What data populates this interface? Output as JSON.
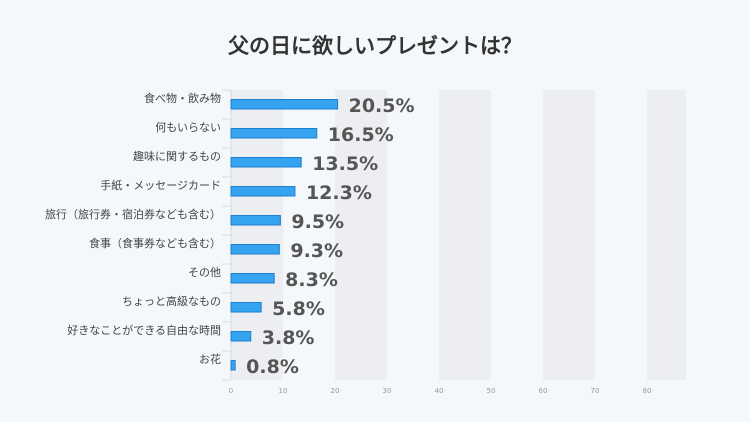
{
  "chart_data": {
    "type": "bar",
    "orientation": "horizontal",
    "title": "父の日に欲しいプレゼントは？",
    "categories": [
      "食べ物・飲み物",
      "何もいらない",
      "趣味に関するもの",
      "手紙・メッセージカード",
      "旅行（旅行券・宿泊券なども含む）",
      "食事（食事券なども含む）",
      "その他",
      "ちょっと高級なもの",
      "好きなことができる自由な時間",
      "お花"
    ],
    "values": [
      20.5,
      16.5,
      13.5,
      12.3,
      9.5,
      9.3,
      8.3,
      5.8,
      3.8,
      0.8
    ],
    "data_labels": [
      "20.5%",
      "16.5%",
      "13.5%",
      "12.3%",
      "9.5%",
      "9.3%",
      "8.3%",
      "5.8%",
      "3.8%",
      "0.8%"
    ],
    "xticks": [
      "0",
      "10",
      "20",
      "30",
      "40",
      "50",
      "60",
      "70",
      "80"
    ],
    "xlim": [
      0,
      87.5
    ],
    "grid": "alternating vertical bands",
    "bar_color": "#35a3f0",
    "bar_border": "#1f7fd0"
  }
}
